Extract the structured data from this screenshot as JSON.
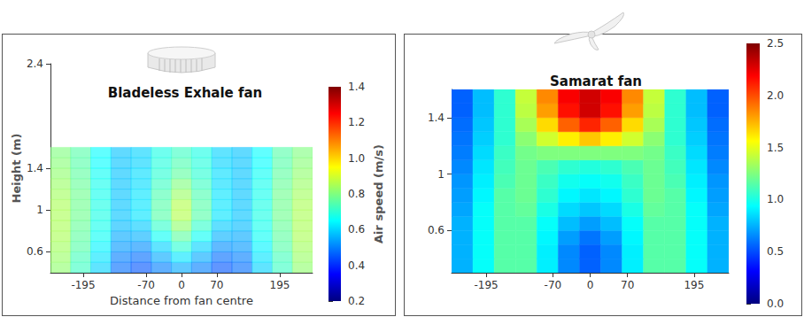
{
  "chart_data": [
    {
      "type": "heatmap",
      "title": "Bladeless Exhale fan",
      "x_label": "Distance from fan centre",
      "y_label": "Height (m)",
      "xlim": [
        -260,
        260
      ],
      "xticks": [
        -195,
        -70,
        0,
        70,
        195
      ],
      "ylim": [
        0.4,
        2.4
      ],
      "yticks": [
        0.6,
        1,
        1.4,
        2.4
      ],
      "x_edges": [
        -260,
        -220,
        -180,
        -140,
        -100,
        -60,
        -20,
        20,
        60,
        100,
        140,
        180,
        220,
        260
      ],
      "y_edges": [
        0.4,
        0.5,
        0.6,
        0.7,
        0.8,
        0.9,
        1.0,
        1.1,
        1.2,
        1.3,
        1.4,
        1.5,
        1.6
      ],
      "cells": [
        [
          0.82,
          0.72,
          0.6,
          0.48,
          0.45,
          0.5,
          0.55,
          0.5,
          0.45,
          0.48,
          0.6,
          0.72,
          0.82
        ],
        [
          0.83,
          0.73,
          0.62,
          0.5,
          0.48,
          0.55,
          0.62,
          0.55,
          0.48,
          0.5,
          0.62,
          0.73,
          0.83
        ],
        [
          0.84,
          0.75,
          0.64,
          0.53,
          0.52,
          0.6,
          0.7,
          0.6,
          0.52,
          0.53,
          0.64,
          0.75,
          0.84
        ],
        [
          0.85,
          0.76,
          0.66,
          0.55,
          0.56,
          0.66,
          0.76,
          0.66,
          0.56,
          0.55,
          0.66,
          0.76,
          0.85
        ],
        [
          0.85,
          0.77,
          0.67,
          0.57,
          0.59,
          0.71,
          0.82,
          0.71,
          0.59,
          0.57,
          0.67,
          0.77,
          0.85
        ],
        [
          0.85,
          0.78,
          0.68,
          0.58,
          0.62,
          0.75,
          0.86,
          0.75,
          0.62,
          0.58,
          0.68,
          0.78,
          0.85
        ],
        [
          0.85,
          0.78,
          0.68,
          0.58,
          0.62,
          0.75,
          0.86,
          0.75,
          0.62,
          0.58,
          0.68,
          0.78,
          0.85
        ],
        [
          0.84,
          0.78,
          0.67,
          0.58,
          0.62,
          0.74,
          0.83,
          0.74,
          0.62,
          0.58,
          0.67,
          0.78,
          0.84
        ],
        [
          0.83,
          0.77,
          0.67,
          0.58,
          0.61,
          0.72,
          0.8,
          0.72,
          0.61,
          0.58,
          0.67,
          0.77,
          0.83
        ],
        [
          0.82,
          0.76,
          0.66,
          0.58,
          0.61,
          0.7,
          0.76,
          0.7,
          0.61,
          0.58,
          0.66,
          0.76,
          0.82
        ],
        [
          0.81,
          0.75,
          0.65,
          0.58,
          0.6,
          0.69,
          0.74,
          0.69,
          0.6,
          0.58,
          0.65,
          0.75,
          0.81
        ],
        [
          0.8,
          0.75,
          0.65,
          0.58,
          0.6,
          0.68,
          0.72,
          0.68,
          0.6,
          0.58,
          0.65,
          0.75,
          0.8
        ]
      ],
      "colorbar_label": "Air speed (m/s)",
      "colorbar_range": [
        0.2,
        1.4
      ],
      "colorbar_ticks": [
        0.2,
        0.4,
        0.6,
        0.8,
        {
          "value": 1.0,
          "label": "1.0"
        },
        1.2,
        1.4
      ]
    },
    {
      "type": "heatmap",
      "title": "Samarat fan",
      "xlim": [
        -260,
        260
      ],
      "xticks": [
        -195,
        -70,
        0,
        70,
        195
      ],
      "ylim": [
        0.3,
        1.6
      ],
      "yticks": [
        0.6,
        1,
        1.4
      ],
      "x_edges": [
        -260,
        -220,
        -180,
        -140,
        -100,
        -60,
        -20,
        20,
        60,
        100,
        140,
        180,
        220,
        260
      ],
      "y_edges": [
        0.3,
        0.4,
        0.5,
        0.6,
        0.7,
        0.8,
        0.9,
        1.0,
        1.1,
        1.2,
        1.3,
        1.4,
        1.5,
        1.6
      ],
      "cells": [
        [
          0.75,
          0.95,
          1.15,
          1.15,
          0.9,
          0.65,
          0.55,
          0.65,
          0.9,
          1.15,
          1.15,
          0.95,
          0.75
        ],
        [
          0.75,
          0.95,
          1.15,
          1.15,
          0.9,
          0.65,
          0.55,
          0.65,
          0.9,
          1.15,
          1.15,
          0.95,
          0.75
        ],
        [
          0.75,
          0.95,
          1.15,
          1.15,
          0.92,
          0.7,
          0.6,
          0.7,
          0.92,
          1.15,
          1.15,
          0.95,
          0.75
        ],
        [
          0.75,
          0.95,
          1.15,
          1.15,
          0.95,
          0.78,
          0.7,
          0.78,
          0.95,
          1.15,
          1.15,
          0.95,
          0.75
        ],
        [
          0.72,
          0.95,
          1.15,
          1.18,
          1.0,
          0.85,
          0.8,
          0.85,
          1.0,
          1.18,
          1.15,
          0.95,
          0.72
        ],
        [
          0.7,
          0.92,
          1.15,
          1.2,
          1.05,
          0.92,
          0.88,
          0.92,
          1.05,
          1.2,
          1.15,
          0.92,
          0.7
        ],
        [
          0.68,
          0.9,
          1.12,
          1.2,
          1.08,
          0.98,
          0.95,
          0.98,
          1.08,
          1.2,
          1.12,
          0.9,
          0.68
        ],
        [
          0.65,
          0.88,
          1.1,
          1.2,
          1.12,
          1.05,
          1.02,
          1.05,
          1.12,
          1.2,
          1.1,
          0.88,
          0.65
        ],
        [
          0.62,
          0.85,
          1.08,
          1.22,
          1.25,
          1.25,
          1.25,
          1.25,
          1.25,
          1.22,
          1.08,
          0.85,
          0.62
        ],
        [
          0.6,
          0.82,
          1.05,
          1.28,
          1.45,
          1.6,
          1.7,
          1.6,
          1.45,
          1.28,
          1.05,
          0.82,
          0.6
        ],
        [
          0.58,
          0.8,
          1.05,
          1.35,
          1.65,
          1.95,
          2.1,
          1.95,
          1.65,
          1.35,
          1.05,
          0.8,
          0.58
        ],
        [
          0.55,
          0.78,
          1.05,
          1.4,
          1.8,
          2.15,
          2.3,
          2.15,
          1.8,
          1.4,
          1.05,
          0.78,
          0.55
        ],
        [
          0.55,
          0.78,
          1.05,
          1.42,
          1.85,
          2.2,
          2.3,
          2.2,
          1.85,
          1.42,
          1.05,
          0.78,
          0.55
        ]
      ],
      "colorbar_range": [
        0,
        2.5
      ],
      "colorbar_ticks": [
        {
          "value": 0,
          "label": "0.0"
        },
        0.5,
        {
          "value": 1,
          "label": "1.0"
        },
        1.5,
        {
          "value": 2,
          "label": "2.0"
        },
        2.5
      ]
    }
  ]
}
